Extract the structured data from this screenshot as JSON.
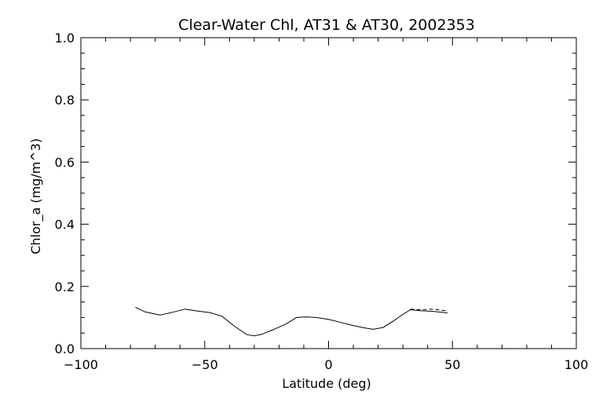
{
  "chart_data": {
    "type": "line",
    "title": "Clear-Water Chl, AT31 & AT30, 2002353",
    "xlabel": "Latitude (deg)",
    "ylabel": "Chlor_a (mg/m^3)",
    "xlim": [
      -100,
      100
    ],
    "ylim": [
      0.0,
      1.0
    ],
    "x_ticks": [
      -100,
      -50,
      0,
      50,
      100
    ],
    "x_tick_labels": [
      "−100",
      "−50",
      "0",
      "50",
      "100"
    ],
    "y_ticks": [
      0.0,
      0.2,
      0.4,
      0.6,
      0.8,
      1.0
    ],
    "y_tick_labels": [
      "0.0",
      "0.2",
      "0.4",
      "0.6",
      "0.8",
      "1.0"
    ],
    "grid": false,
    "series": [
      {
        "style": "solid",
        "x": [
          -78,
          -74,
          -68,
          -63,
          -58,
          -53,
          -48,
          -43,
          -38,
          -33,
          -30,
          -27,
          -22,
          -17,
          -13,
          -9,
          -5,
          0,
          5,
          10,
          15,
          18,
          22,
          26,
          30,
          33,
          37,
          42,
          48
        ],
        "y": [
          0.133,
          0.118,
          0.108,
          0.117,
          0.127,
          0.121,
          0.116,
          0.104,
          0.072,
          0.045,
          0.041,
          0.046,
          0.062,
          0.08,
          0.1,
          0.102,
          0.1,
          0.094,
          0.084,
          0.074,
          0.066,
          0.062,
          0.068,
          0.088,
          0.11,
          0.125,
          0.122,
          0.12,
          0.115
        ]
      },
      {
        "style": "dashed",
        "x": [
          33,
          37,
          42,
          48
        ],
        "y": [
          0.127,
          0.125,
          0.127,
          0.121
        ]
      }
    ]
  }
}
